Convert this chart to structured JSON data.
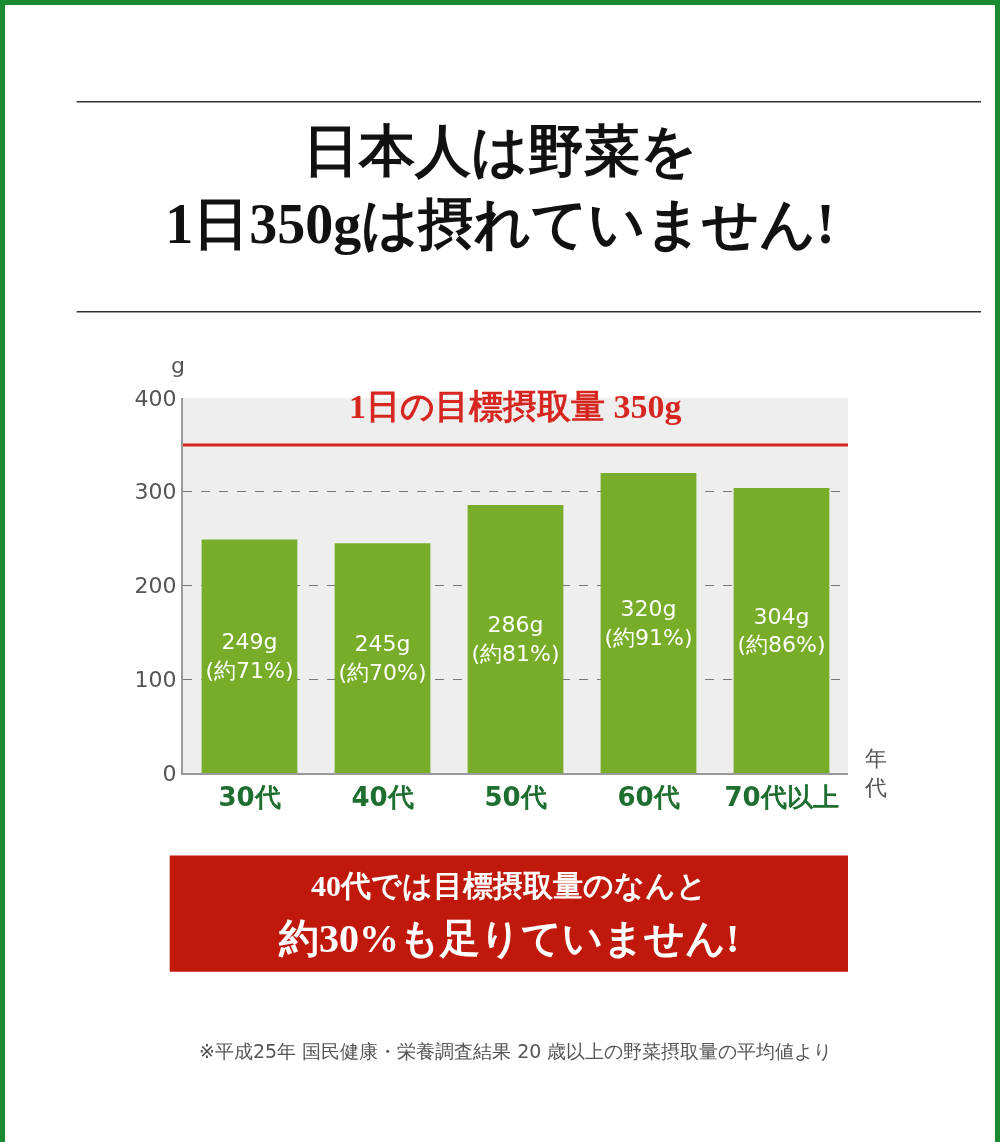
{
  "chart_data": {
    "type": "bar",
    "title": "日本人は野菜を\n1日350gは摂れていません!",
    "ylabel": "g",
    "xlabel": "年代",
    "categories": [
      "30代",
      "40代",
      "50代",
      "60代",
      "70代以上"
    ],
    "values": [
      249,
      245,
      286,
      320,
      304
    ],
    "value_labels": [
      "249g\n(約71%)",
      "245g\n(約70%)",
      "286g\n(約81%)",
      "320g\n(約91%)",
      "304g\n(約86%)"
    ],
    "color": "#78ad2a",
    "ylim": [
      0,
      400
    ],
    "yticks": [
      0,
      100,
      200,
      300,
      400
    ],
    "grid": "y",
    "ref_lines": [
      {
        "axis": "y",
        "value": 350,
        "label": "1日の目標摂取量 350g",
        "color": "#d7251f"
      }
    ],
    "annotations": [
      "40代では目標摂取量のなんと",
      "約30%も足りていません!",
      "※平成25年 国民健康・栄養調査結果 20 歳以上の野菜摂取量の平均値より"
    ]
  }
}
